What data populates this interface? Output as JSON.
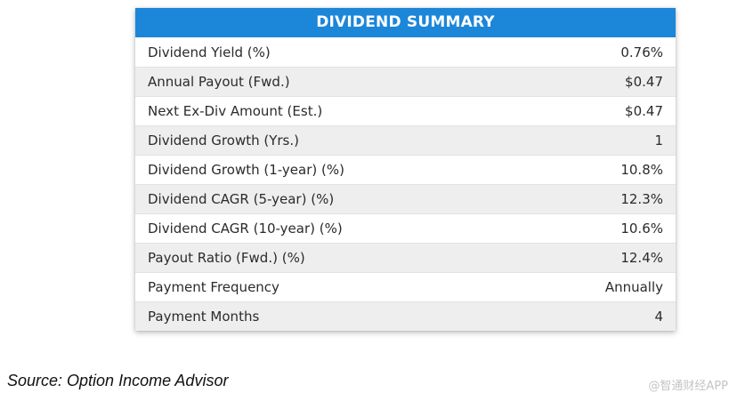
{
  "table": {
    "title": "DIVIDEND SUMMARY",
    "rows": [
      {
        "label": "Dividend Yield (%)",
        "value": "0.76%"
      },
      {
        "label": "Annual Payout (Fwd.)",
        "value": "$0.47"
      },
      {
        "label": "Next Ex-Div Amount (Est.)",
        "value": "$0.47"
      },
      {
        "label": "Dividend Growth (Yrs.)",
        "value": "1"
      },
      {
        "label": "Dividend Growth (1-year) (%)",
        "value": "10.8%"
      },
      {
        "label": "Dividend CAGR (5-year) (%)",
        "value": "12.3%"
      },
      {
        "label": "Dividend CAGR (10-year) (%)",
        "value": "10.6%"
      },
      {
        "label": "Payout Ratio (Fwd.) (%)",
        "value": "12.4%"
      },
      {
        "label": "Payment Frequency",
        "value": "Annually"
      },
      {
        "label": "Payment Months",
        "value": "4"
      }
    ]
  },
  "source": "Source: Option Income Advisor",
  "watermark": "@智通财经APP",
  "colors": {
    "header_background": "#1c86d9",
    "header_text": "#ffffff",
    "row_odd": "#ffffff",
    "row_even": "#eeeeee"
  }
}
